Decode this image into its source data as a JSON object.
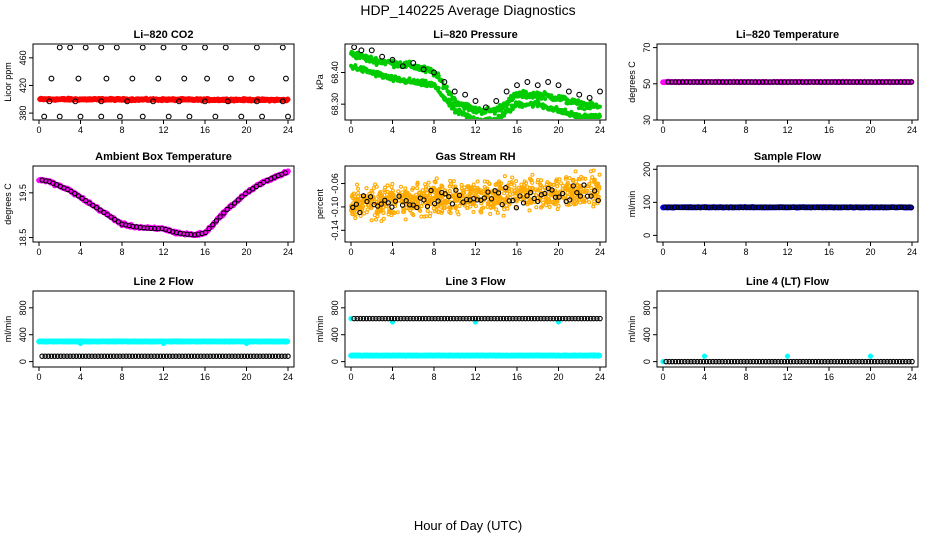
{
  "figure": {
    "title": "HDP_140225  Average Diagnostics",
    "xlabel": "Hour of Day (UTC)"
  },
  "chart_data": [
    {
      "type": "scatter",
      "title": "Li–820 CO2",
      "ylabel": "Licor ppm",
      "xlim": [
        0,
        24
      ],
      "ylim": [
        370,
        480
      ],
      "xticks": [
        "0",
        "4",
        "8",
        "12",
        "16",
        "20",
        "24"
      ],
      "yticks": [
        {
          "v": 380,
          "t": "380"
        },
        {
          "v": 420,
          "t": "420"
        },
        {
          "v": 460,
          "t": "460"
        }
      ],
      "series": [
        {
          "color": "#ff0000",
          "style": "dense",
          "x_start": 0.1,
          "x_end": 24,
          "y_start": 400,
          "y_end": 399,
          "noise": 1.2
        },
        {
          "color": "#000000",
          "style": "sparse",
          "x": [
            2,
            3,
            4.5,
            6,
            7.5,
            10,
            12,
            14,
            16,
            18,
            21,
            23.5
          ],
          "y": [
            475,
            475,
            475,
            475,
            475,
            475,
            475,
            475,
            475,
            475,
            475,
            475
          ]
        },
        {
          "color": "#000000",
          "style": "sparse",
          "x": [
            1.2,
            3.8,
            6.5,
            9,
            11.5,
            14,
            16.2,
            18.5,
            20.5,
            23.8
          ],
          "y": [
            430,
            430,
            430,
            430,
            430,
            430,
            430,
            430,
            430,
            430
          ]
        },
        {
          "color": "#000000",
          "style": "sparse",
          "x": [
            1,
            3.5,
            6,
            8.5,
            11,
            13.5,
            16,
            18.2,
            21,
            23.5
          ],
          "y": [
            397,
            397,
            397,
            397,
            397,
            397,
            397,
            397,
            397,
            397
          ]
        },
        {
          "color": "#000000",
          "style": "sparse",
          "x": [
            0.5,
            2,
            4,
            6,
            7.8,
            10,
            12.5,
            14.5,
            17,
            19.5,
            21.5,
            24
          ],
          "y": [
            375,
            375,
            375,
            375,
            375,
            375,
            375,
            375,
            375,
            375,
            375,
            375
          ]
        }
      ]
    },
    {
      "type": "scatter",
      "title": "Li–820 Pressure",
      "ylabel": "kPa",
      "xlim": [
        0,
        24
      ],
      "ylim": [
        68.25,
        68.49
      ],
      "xticks": [
        "0",
        "4",
        "8",
        "12",
        "16",
        "20",
        "24"
      ],
      "yticks": [
        {
          "v": 68.3,
          "t": "68.30"
        },
        {
          "v": 68.4,
          "t": "68.40"
        }
      ],
      "series": [
        {
          "color": "#00cc00",
          "style": "band",
          "x": [
            0,
            2,
            4,
            6,
            8,
            9,
            10,
            12,
            14,
            16,
            18,
            20,
            22,
            24
          ],
          "y": [
            68.46,
            68.44,
            68.43,
            68.42,
            68.4,
            68.36,
            68.31,
            68.28,
            68.28,
            68.33,
            68.33,
            68.32,
            68.3,
            68.29
          ],
          "noise": 0.012
        },
        {
          "color": "#00cc00",
          "style": "band",
          "x": [
            0,
            2,
            4,
            6,
            8,
            9,
            10,
            12,
            14,
            16,
            18,
            20,
            22,
            24
          ],
          "y": [
            68.42,
            68.4,
            68.38,
            68.37,
            68.36,
            68.32,
            68.28,
            68.25,
            68.25,
            68.3,
            68.3,
            68.28,
            68.26,
            68.26
          ],
          "noise": 0.01
        },
        {
          "color": "#000000",
          "style": "sparse",
          "x": [
            0.3,
            1,
            2,
            3,
            4,
            5,
            6,
            7,
            8,
            9,
            10,
            11,
            12,
            13,
            14,
            15,
            16,
            17,
            18,
            19,
            20,
            21,
            22,
            23,
            24
          ],
          "y": [
            68.48,
            68.47,
            68.47,
            68.45,
            68.44,
            68.42,
            68.43,
            68.41,
            68.4,
            68.37,
            68.34,
            68.33,
            68.31,
            68.29,
            68.31,
            68.34,
            68.36,
            68.37,
            68.36,
            68.37,
            68.36,
            68.34,
            68.33,
            68.32,
            68.34
          ]
        }
      ]
    },
    {
      "type": "scatter",
      "title": "Li–820 Temperature",
      "ylabel": "degrees C",
      "xlim": [
        0,
        24
      ],
      "ylim": [
        30,
        72
      ],
      "xticks": [
        "0",
        "4",
        "8",
        "12",
        "16",
        "20",
        "24"
      ],
      "yticks": [
        {
          "v": 30,
          "t": "30"
        },
        {
          "v": 50,
          "t": "50"
        },
        {
          "v": 70,
          "t": "70"
        }
      ],
      "series": [
        {
          "color": "#ff00ff",
          "style": "dense",
          "x_start": 0,
          "x_end": 24,
          "y_start": 51,
          "y_end": 51,
          "noise": 0.2
        },
        {
          "color": "#000000",
          "style": "open",
          "x_start": 0.5,
          "x_end": 24,
          "y_start": 51,
          "y_end": 51,
          "step": 0.35
        }
      ]
    },
    {
      "type": "scatter",
      "title": "Ambient Box Temperature",
      "ylabel": "degrees C",
      "xlim": [
        0,
        24
      ],
      "ylim": [
        18.4,
        20.1
      ],
      "xticks": [
        "0",
        "4",
        "8",
        "12",
        "16",
        "20",
        "24"
      ],
      "yticks": [
        {
          "v": 18.5,
          "t": "18.5"
        },
        {
          "v": 19.5,
          "t": "19.5"
        }
      ],
      "series": [
        {
          "color": "#ff00ff",
          "style": "curve",
          "x": [
            0,
            1,
            2,
            3,
            4,
            5,
            6,
            7,
            8,
            9,
            10,
            11,
            12,
            13,
            14,
            15,
            16,
            17,
            18,
            19,
            20,
            21,
            22,
            23,
            24
          ],
          "y": [
            19.8,
            19.75,
            19.65,
            19.55,
            19.4,
            19.25,
            19.1,
            18.95,
            18.8,
            18.75,
            18.72,
            18.7,
            18.7,
            18.62,
            18.58,
            18.56,
            18.6,
            18.85,
            19.1,
            19.3,
            19.5,
            19.65,
            19.78,
            19.88,
            19.97
          ],
          "noise": 0.03
        },
        {
          "color": "#000000",
          "style": "open-curve",
          "x": [
            0,
            1,
            2,
            3,
            4,
            5,
            6,
            7,
            8,
            9,
            10,
            11,
            12,
            13,
            14,
            15,
            16,
            17,
            18,
            19,
            20,
            21,
            22,
            23,
            24
          ],
          "y": [
            19.8,
            19.75,
            19.65,
            19.55,
            19.4,
            19.25,
            19.1,
            18.95,
            18.8,
            18.75,
            18.72,
            18.7,
            18.7,
            18.62,
            18.58,
            18.56,
            18.6,
            18.85,
            19.1,
            19.3,
            19.5,
            19.65,
            19.78,
            19.88,
            19.97
          ]
        }
      ]
    },
    {
      "type": "scatter",
      "title": "Gas Stream RH",
      "ylabel": "percent",
      "xlim": [
        0,
        24
      ],
      "ylim": [
        -0.16,
        -0.03
      ],
      "xticks": [
        "0",
        "4",
        "8",
        "12",
        "16",
        "20",
        "24"
      ],
      "yticks": [
        {
          "v": -0.14,
          "t": "-0.14"
        },
        {
          "v": -0.1,
          "t": "-0.10"
        },
        {
          "v": -0.06,
          "t": "-0.06"
        }
      ],
      "series": [
        {
          "color": "#ffaa00",
          "style": "scatter-band",
          "x_start": 0,
          "x_end": 24,
          "y_start": -0.095,
          "y_end": -0.07,
          "noise": 0.03,
          "n": 900
        },
        {
          "color": "#000000",
          "style": "scatter-band-open",
          "x_start": 0,
          "x_end": 24,
          "y_start": -0.095,
          "y_end": -0.075,
          "noise": 0.018,
          "n": 70
        }
      ]
    },
    {
      "type": "scatter",
      "title": "Sample Flow",
      "ylabel": "ml/min",
      "xlim": [
        0,
        24
      ],
      "ylim": [
        -20,
        210
      ],
      "xticks": [
        "0",
        "4",
        "8",
        "12",
        "16",
        "20",
        "24"
      ],
      "yticks": [
        {
          "v": 0,
          "t": "0"
        },
        {
          "v": 100,
          "t": "100"
        },
        {
          "v": 200,
          "t": "200"
        }
      ],
      "series": [
        {
          "color": "#0000ff",
          "style": "dense",
          "x_start": 0,
          "x_end": 24,
          "y_start": 85,
          "y_end": 85,
          "noise": 1
        },
        {
          "color": "#000000",
          "style": "open",
          "x_start": 0.2,
          "x_end": 24,
          "y_start": 85,
          "y_end": 85,
          "step": 0.3
        }
      ]
    },
    {
      "type": "scatter",
      "title": "Line 2 Flow",
      "ylabel": "ml/min",
      "xlim": [
        0,
        24
      ],
      "ylim": [
        -80,
        1050
      ],
      "xticks": [
        "0",
        "4",
        "8",
        "12",
        "16",
        "20",
        "24"
      ],
      "yticks": [
        {
          "v": 0,
          "t": "0"
        },
        {
          "v": 400,
          "t": "400"
        },
        {
          "v": 800,
          "t": "800"
        }
      ],
      "series": [
        {
          "color": "#00ffff",
          "style": "dense",
          "x_start": 0,
          "x_end": 24,
          "y_start": 300,
          "y_end": 300,
          "noise": 4
        },
        {
          "color": "#00ffff",
          "style": "sparse",
          "x": [
            4,
            12,
            20
          ],
          "y": [
            270,
            270,
            270
          ]
        },
        {
          "color": "#000000",
          "style": "open",
          "x_start": 0.3,
          "x_end": 24,
          "y_start": 80,
          "y_end": 80,
          "step": 0.3
        }
      ]
    },
    {
      "type": "scatter",
      "title": "Line 3 Flow",
      "ylabel": "ml/min",
      "xlim": [
        0,
        24
      ],
      "ylim": [
        -80,
        1050
      ],
      "xticks": [
        "0",
        "4",
        "8",
        "12",
        "16",
        "20",
        "24"
      ],
      "yticks": [
        {
          "v": 0,
          "t": "0"
        },
        {
          "v": 400,
          "t": "400"
        },
        {
          "v": 800,
          "t": "800"
        }
      ],
      "series": [
        {
          "color": "#00ffff",
          "style": "dense",
          "x_start": 0,
          "x_end": 24,
          "y_start": 90,
          "y_end": 90,
          "noise": 4
        },
        {
          "color": "#00ffff",
          "style": "sparse",
          "x": [
            0,
            4,
            12,
            20
          ],
          "y": [
            640,
            590,
            590,
            590
          ]
        },
        {
          "color": "#000000",
          "style": "open",
          "x_start": 0.3,
          "x_end": 24,
          "y_start": 640,
          "y_end": 640,
          "step": 0.3
        }
      ]
    },
    {
      "type": "scatter",
      "title": "Line 4 (LT) Flow",
      "ylabel": "ml/min",
      "xlim": [
        0,
        24
      ],
      "ylim": [
        -80,
        1050
      ],
      "xticks": [
        "0",
        "4",
        "8",
        "12",
        "16",
        "20",
        "24"
      ],
      "yticks": [
        {
          "v": 0,
          "t": "0"
        },
        {
          "v": 400,
          "t": "400"
        },
        {
          "v": 800,
          "t": "800"
        }
      ],
      "series": [
        {
          "color": "#00ffff",
          "style": "sparse",
          "x": [
            0,
            4,
            12,
            20
          ],
          "y": [
            0,
            80,
            80,
            80
          ]
        },
        {
          "color": "#000000",
          "style": "open",
          "x_start": 0.3,
          "x_end": 24,
          "y_start": 0,
          "y_end": 0,
          "step": 0.3
        }
      ]
    }
  ]
}
